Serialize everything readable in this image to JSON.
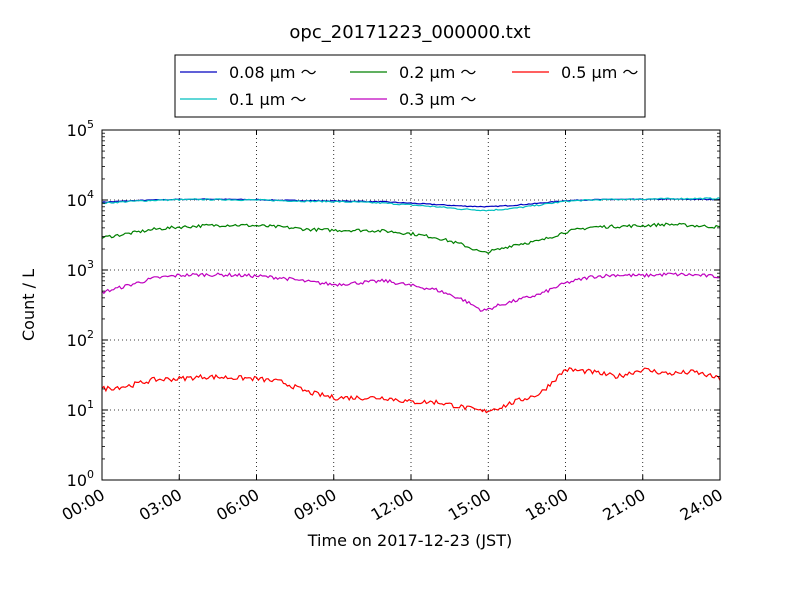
{
  "chart_data": {
    "type": "line",
    "title": "opc_20171223_000000.txt",
    "xlabel": "Time on 2017-12-23 (JST)",
    "ylabel": "Count / L",
    "y_scale": "log",
    "ylim": [
      1,
      100000
    ],
    "xlim": [
      "2017-12-23 00:00",
      "2017-12-24 00:00"
    ],
    "x_tick_labels": [
      "00:00",
      "03:00",
      "06:00",
      "09:00",
      "12:00",
      "15:00",
      "18:00",
      "21:00",
      "24:00"
    ],
    "x_tick_hours": [
      0,
      3,
      6,
      9,
      12,
      15,
      18,
      21,
      24
    ],
    "y_tick_exponents": [
      0,
      1,
      2,
      3,
      4,
      5
    ],
    "y_tick_base": "10",
    "grid": true,
    "legend": {
      "placement": "top",
      "columns": 3
    },
    "series": [
      {
        "name": "0.08 μm ～",
        "color": "#0000bf",
        "points": [
          [
            0,
            9300
          ],
          [
            1,
            9700
          ],
          [
            2,
            10000
          ],
          [
            3,
            10200
          ],
          [
            4,
            10300
          ],
          [
            5,
            10200
          ],
          [
            6,
            10100
          ],
          [
            7,
            9900
          ],
          [
            8,
            9800
          ],
          [
            9,
            9700
          ],
          [
            10,
            9600
          ],
          [
            11,
            9400
          ],
          [
            12,
            9000
          ],
          [
            13,
            8600
          ],
          [
            14,
            8200
          ],
          [
            15,
            8000
          ],
          [
            16,
            8400
          ],
          [
            17,
            9000
          ],
          [
            18,
            9800
          ],
          [
            19,
            10100
          ],
          [
            20,
            10200
          ],
          [
            21,
            10200
          ],
          [
            22,
            10300
          ],
          [
            23,
            10200
          ],
          [
            24,
            10200
          ]
        ]
      },
      {
        "name": "0.1 μm ～",
        "color": "#00bfbf",
        "points": [
          [
            0,
            9000
          ],
          [
            1,
            9500
          ],
          [
            2,
            9900
          ],
          [
            3,
            10100
          ],
          [
            4,
            10200
          ],
          [
            5,
            10100
          ],
          [
            6,
            10000
          ],
          [
            7,
            9800
          ],
          [
            8,
            9600
          ],
          [
            9,
            9500
          ],
          [
            10,
            9300
          ],
          [
            11,
            9000
          ],
          [
            12,
            8500
          ],
          [
            13,
            8000
          ],
          [
            14,
            7400
          ],
          [
            15,
            7100
          ],
          [
            16,
            7600
          ],
          [
            17,
            8500
          ],
          [
            18,
            9600
          ],
          [
            19,
            10000
          ],
          [
            20,
            10200
          ],
          [
            21,
            10300
          ],
          [
            22,
            10400
          ],
          [
            23,
            10500
          ],
          [
            24,
            10500
          ]
        ]
      },
      {
        "name": "0.2 μm ～",
        "color": "#008000",
        "points": [
          [
            0,
            2900
          ],
          [
            1,
            3300
          ],
          [
            2,
            3800
          ],
          [
            3,
            4100
          ],
          [
            4,
            4300
          ],
          [
            5,
            4400
          ],
          [
            6,
            4300
          ],
          [
            7,
            4100
          ],
          [
            8,
            3800
          ],
          [
            9,
            3700
          ],
          [
            10,
            3700
          ],
          [
            11,
            3600
          ],
          [
            12,
            3300
          ],
          [
            13,
            2900
          ],
          [
            14,
            2300
          ],
          [
            14.8,
            1750
          ],
          [
            15.5,
            2000
          ],
          [
            16,
            2300
          ],
          [
            17,
            2600
          ],
          [
            18,
            3500
          ],
          [
            19,
            4100
          ],
          [
            20,
            4200
          ],
          [
            21,
            4300
          ],
          [
            22,
            4500
          ],
          [
            23,
            4300
          ],
          [
            24,
            4100
          ]
        ]
      },
      {
        "name": "0.3 μm ～",
        "color": "#bf00bf",
        "points": [
          [
            0,
            480
          ],
          [
            1,
            600
          ],
          [
            2,
            760
          ],
          [
            3,
            840
          ],
          [
            4,
            860
          ],
          [
            5,
            850
          ],
          [
            6,
            820
          ],
          [
            7,
            770
          ],
          [
            8,
            680
          ],
          [
            9,
            620
          ],
          [
            10,
            660
          ],
          [
            11,
            700
          ],
          [
            12,
            600
          ],
          [
            13,
            520
          ],
          [
            14,
            380
          ],
          [
            14.8,
            260
          ],
          [
            15.5,
            320
          ],
          [
            16,
            360
          ],
          [
            17,
            450
          ],
          [
            18,
            650
          ],
          [
            19,
            800
          ],
          [
            20,
            850
          ],
          [
            21,
            830
          ],
          [
            22,
            870
          ],
          [
            23,
            850
          ],
          [
            24,
            800
          ]
        ]
      },
      {
        "name": "0.5 μm ～",
        "color": "#ff0000",
        "points": [
          [
            0,
            20
          ],
          [
            1,
            22
          ],
          [
            2,
            27
          ],
          [
            3,
            28
          ],
          [
            4,
            30
          ],
          [
            5,
            29
          ],
          [
            6,
            28
          ],
          [
            7,
            25
          ],
          [
            8,
            18
          ],
          [
            9,
            15
          ],
          [
            10,
            15
          ],
          [
            11,
            15
          ],
          [
            12,
            13
          ],
          [
            13,
            13
          ],
          [
            14,
            11
          ],
          [
            14.8,
            9.5
          ],
          [
            15.5,
            11
          ],
          [
            16,
            13
          ],
          [
            17,
            17
          ],
          [
            18,
            38
          ],
          [
            19,
            35
          ],
          [
            20,
            30
          ],
          [
            21,
            38
          ],
          [
            22,
            33
          ],
          [
            23,
            35
          ],
          [
            24,
            28
          ]
        ]
      }
    ]
  }
}
